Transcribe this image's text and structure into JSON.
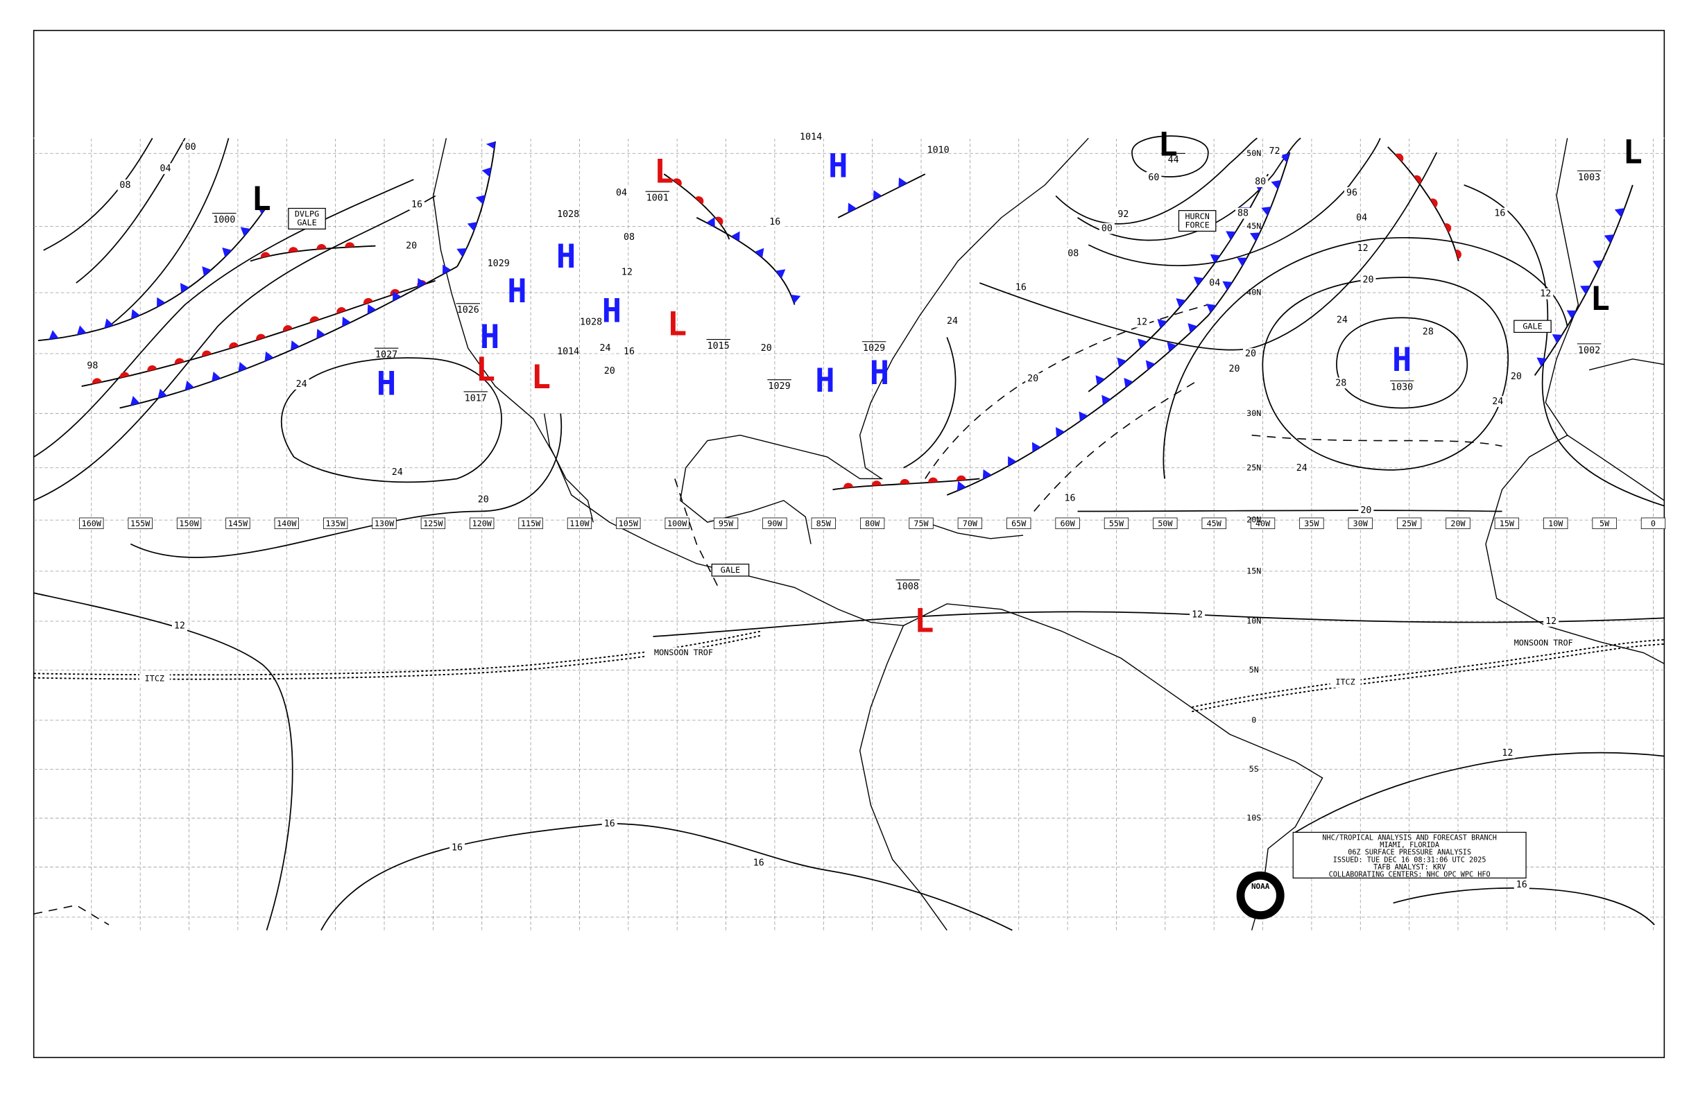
{
  "map": {
    "longitude_labels": [
      "160W",
      "155W",
      "150W",
      "145W",
      "140W",
      "135W",
      "130W",
      "125W",
      "120W",
      "115W",
      "110W",
      "105W",
      "100W",
      "95W",
      "90W",
      "85W",
      "80W",
      "75W",
      "70W",
      "65W",
      "60W",
      "55W",
      "50W",
      "45W",
      "40W",
      "35W",
      "30W",
      "25W",
      "20W",
      "15W",
      "10W",
      "5W",
      "0"
    ],
    "latitude_labels": [
      "50N",
      "45N",
      "40N",
      "30N",
      "25N",
      "20N",
      "15N",
      "10N",
      "5N",
      "0",
      "5S",
      "10S"
    ],
    "pressure_centers": [
      {
        "symbol": "H",
        "color": "#1a1aff"
      },
      {
        "symbol": "H",
        "color": "#1a1aff"
      },
      {
        "symbol": "H",
        "color": "#1a1aff"
      },
      {
        "symbol": "H",
        "color": "#1a1aff"
      },
      {
        "symbol": "H",
        "color": "#1a1aff",
        "pressure": "1026"
      },
      {
        "symbol": "H",
        "color": "#1a1aff",
        "pressure": "1027"
      },
      {
        "symbol": "H",
        "color": "#1a1aff",
        "pressure": "1029"
      },
      {
        "symbol": "H",
        "color": "#1a1aff",
        "pressure": "1029"
      },
      {
        "symbol": "H",
        "color": "#1a1aff",
        "pressure": "1030"
      },
      {
        "symbol": "L",
        "color": "#e01010",
        "pressure": "1001"
      },
      {
        "symbol": "L",
        "color": "#e01010",
        "pressure": "1015"
      },
      {
        "symbol": "L",
        "color": "#e01010",
        "pressure": "1017"
      },
      {
        "symbol": "L",
        "color": "#e01010"
      },
      {
        "symbol": "L",
        "color": "#e01010",
        "pressure": "1008"
      },
      {
        "symbol": "L",
        "color": "#000000",
        "pressure": "1000"
      },
      {
        "symbol": "L",
        "color": "#000000",
        "pressure": "44"
      },
      {
        "symbol": "L",
        "color": "#000000",
        "pressure": "1002"
      },
      {
        "symbol": "L",
        "color": "#000000",
        "pressure": "1003"
      }
    ],
    "pressure_labels": [
      "1014",
      "1010",
      "1028",
      "1029",
      "1028",
      "1014"
    ],
    "isobar_labels": [
      "00",
      "04",
      "08",
      "16",
      "20",
      "24",
      "24",
      "20",
      "98",
      "12",
      "16",
      "16",
      "16",
      "12",
      "12",
      "12",
      "16",
      "20",
      "24",
      "28",
      "28",
      "24",
      "20",
      "16",
      "12",
      "20",
      "24",
      "12",
      "04",
      "96",
      "88",
      "80",
      "72",
      "92",
      "00",
      "08",
      "16",
      "12",
      "04",
      "20",
      "20",
      "24",
      "20",
      "16",
      "60",
      "04",
      "08",
      "12",
      "16",
      "20",
      "24",
      "20",
      "16"
    ],
    "boxed_labels": [
      {
        "lines": [
          "DVLPG",
          "GALE"
        ]
      },
      {
        "lines": [
          "GALE"
        ]
      },
      {
        "lines": [
          "HURCN",
          "FORCE"
        ]
      },
      {
        "lines": [
          "GALE"
        ]
      }
    ],
    "front_labels": [
      "MONSOON TROF",
      "ITCZ",
      "ITCZ",
      "MONSOON TROF"
    ],
    "info_box": {
      "lines": [
        "NHC/TROPICAL ANALYSIS AND FORECAST BRANCH",
        "MIAMI, FLORIDA",
        "06Z SURFACE PRESSURE ANALYSIS",
        "ISSUED: TUE DEC 16 08:31:06 UTC 2025",
        "TAFB ANALYST: KRV",
        "COLLABORATING CENTERS: NHC OPC WPC HFO"
      ]
    },
    "logo_text": "NOAA"
  }
}
